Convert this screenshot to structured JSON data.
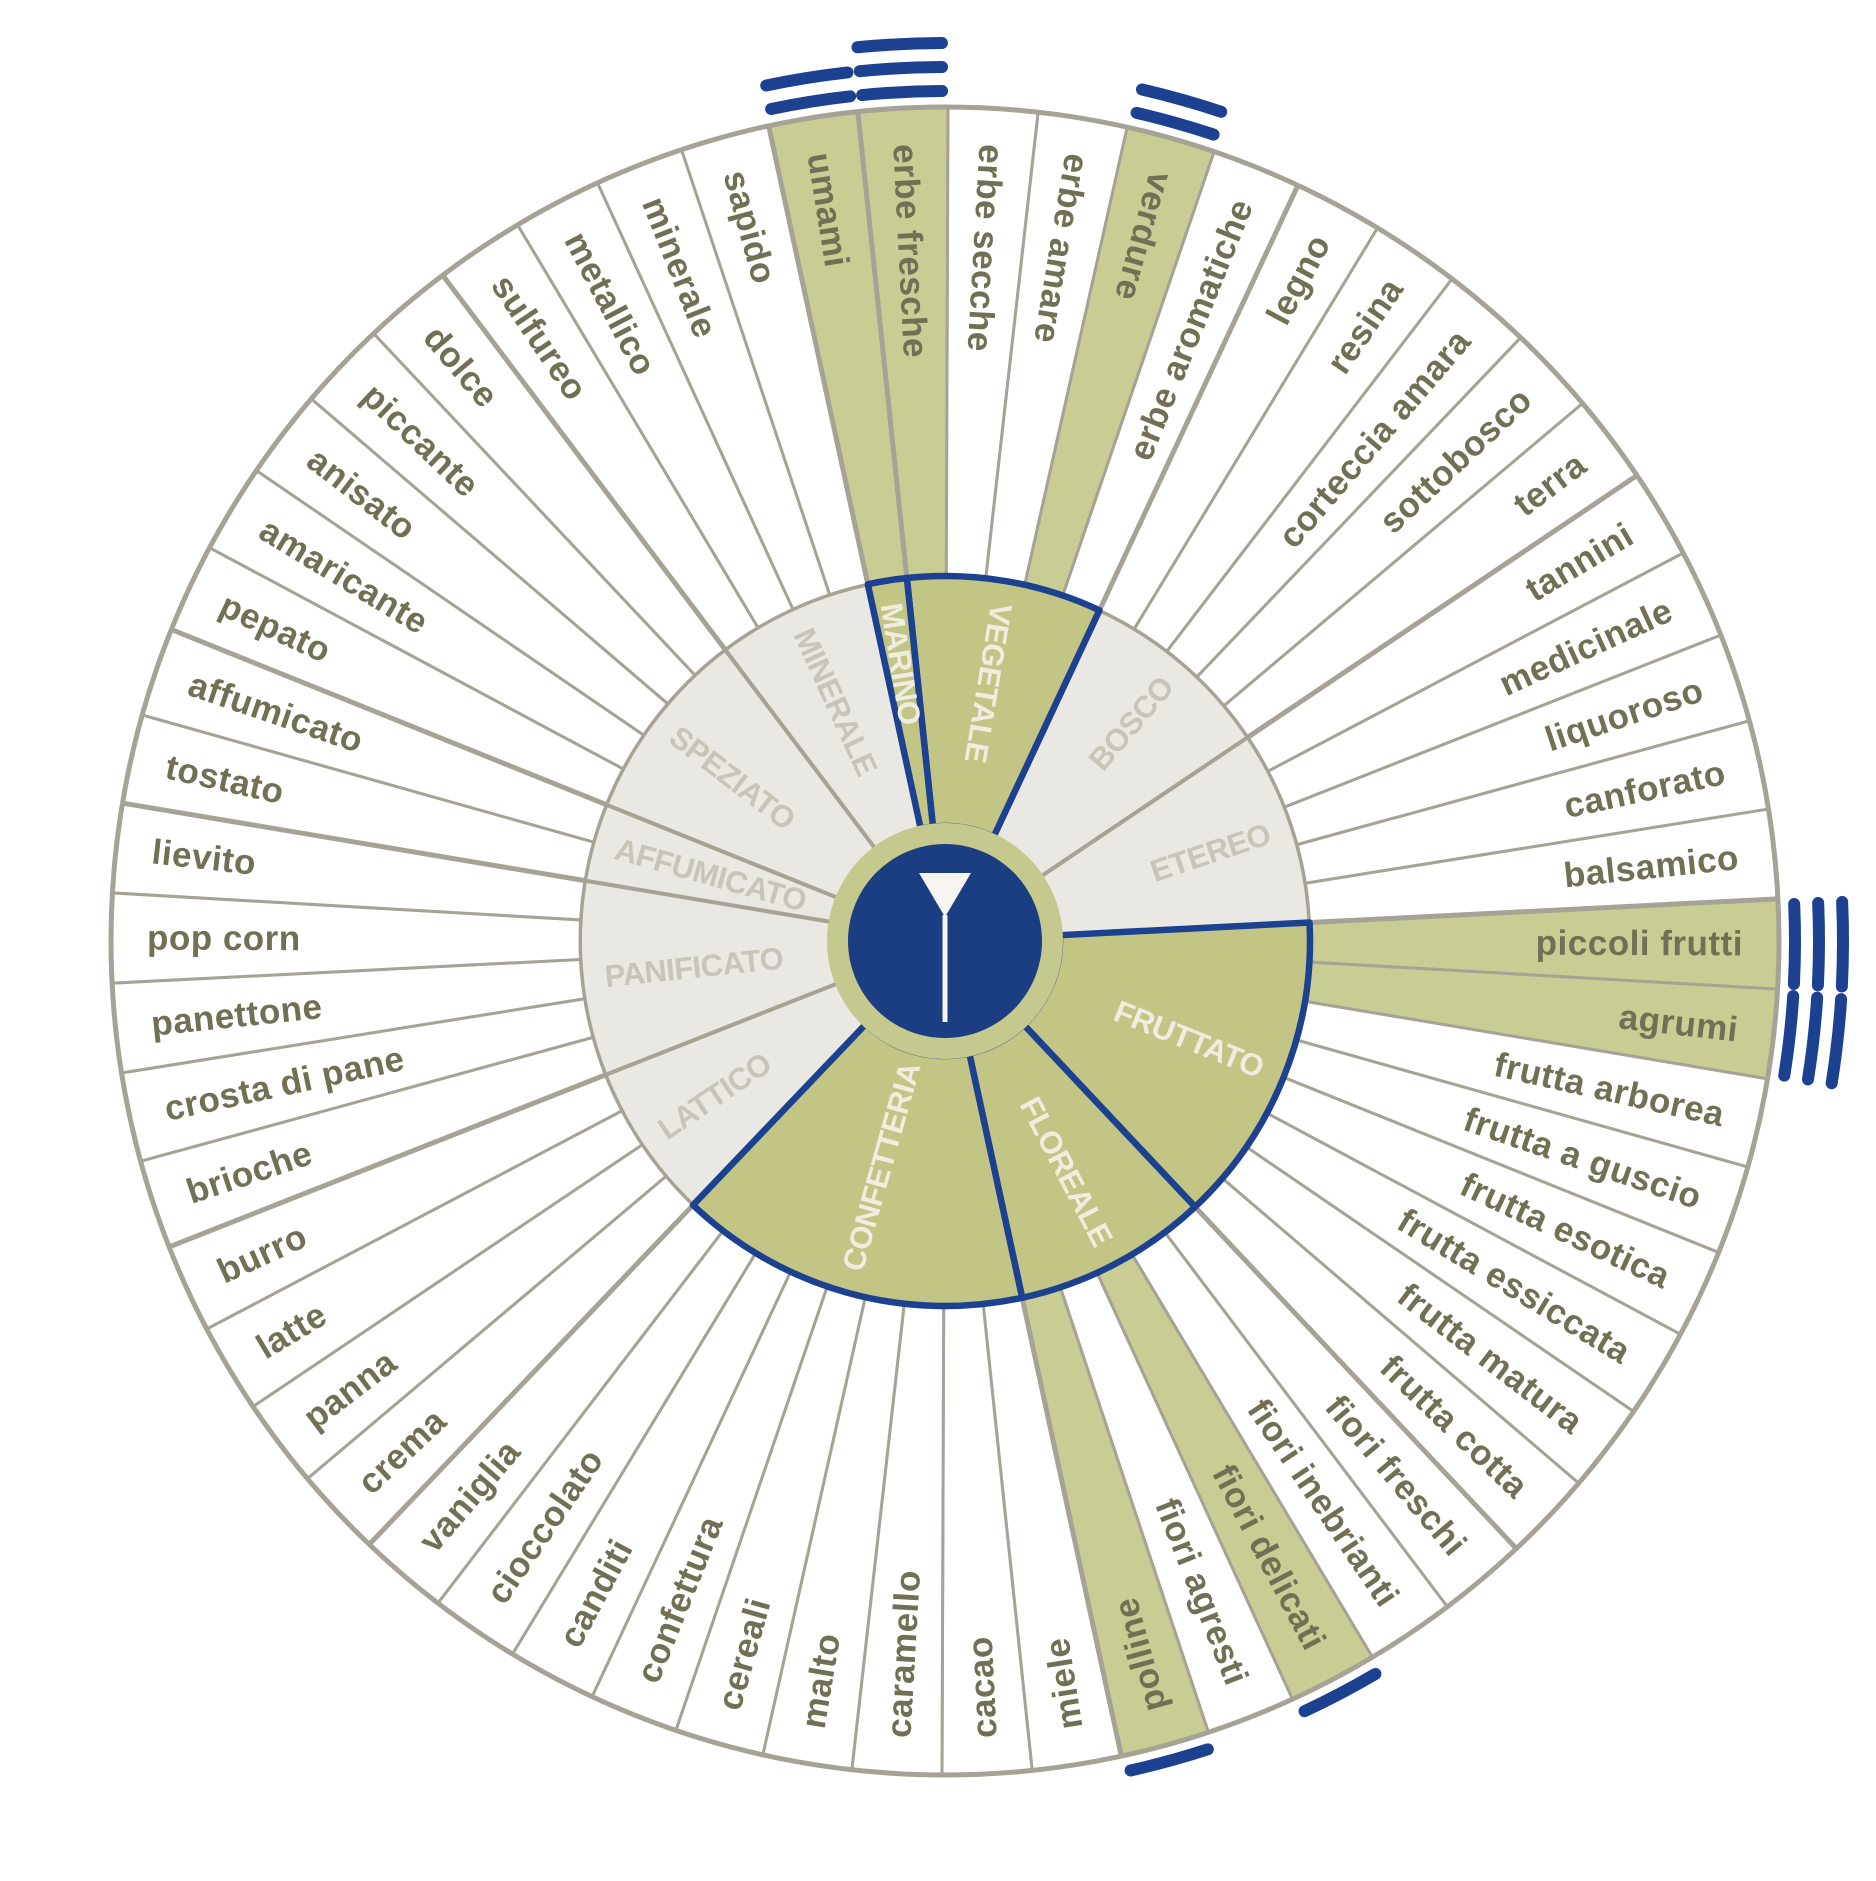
{
  "colors": {
    "blue": "#1c4190",
    "navy_center": "#1b3e82",
    "green_wedge": "#c9cc93",
    "green_inner": "#c2c584",
    "green_ring": "#c6c98d",
    "gray_fill": "#e9e8e2",
    "line_gray": "#a6a396",
    "text_outer": "#716f54",
    "text_inner_gray": "#c7c5b9",
    "text_inner_green": "#f0ecdf",
    "white": "#ffffff",
    "glass_white": "#f6f4ef"
  },
  "center_icon": "wine-glass-icon",
  "chart_data": {
    "type": "sunburst",
    "title": "",
    "rings": 2,
    "start_angle": -96,
    "legend_position": "none",
    "intensity_marks_note": "blue arc marks outside rim = intensity count per highlighted aroma",
    "categories": [
      {
        "label": "VEGETALE",
        "highlighted": true,
        "items": [
          {
            "label": "erbe fresche",
            "highlighted": true,
            "intensity": 3
          },
          {
            "label": "erbe secche",
            "highlighted": false
          },
          {
            "label": "erbe amare",
            "highlighted": false
          },
          {
            "label": "verdure",
            "highlighted": true,
            "intensity": 2
          },
          {
            "label": "erbe aromatiche",
            "highlighted": false
          }
        ]
      },
      {
        "label": "BOSCO",
        "highlighted": false,
        "items": [
          {
            "label": "legno",
            "highlighted": false
          },
          {
            "label": "resina",
            "highlighted": false
          },
          {
            "label": "corteccia amara",
            "highlighted": false
          },
          {
            "label": "sottobosco",
            "highlighted": false
          },
          {
            "label": "terra",
            "highlighted": false
          }
        ]
      },
      {
        "label": "ETEREO",
        "highlighted": false,
        "items": [
          {
            "label": "tannini",
            "highlighted": false
          },
          {
            "label": "medicinale",
            "highlighted": false
          },
          {
            "label": "liquoroso",
            "highlighted": false
          },
          {
            "label": "canforato",
            "highlighted": false
          },
          {
            "label": "balsamico",
            "highlighted": false
          }
        ]
      },
      {
        "label": "FRUTTATO",
        "highlighted": true,
        "items": [
          {
            "label": "piccoli frutti",
            "highlighted": true,
            "intensity": 3
          },
          {
            "label": "agrumi",
            "highlighted": true,
            "intensity": 3
          },
          {
            "label": "frutta arborea",
            "highlighted": false
          },
          {
            "label": "frutta a guscio",
            "highlighted": false
          },
          {
            "label": "frutta esotica",
            "highlighted": false
          },
          {
            "label": "frutta essiccata",
            "highlighted": false
          },
          {
            "label": "frutta matura",
            "highlighted": false
          },
          {
            "label": "frutta cotta",
            "highlighted": false
          }
        ]
      },
      {
        "label": "FLOREALE",
        "highlighted": true,
        "items": [
          {
            "label": "fiori freschi",
            "highlighted": false
          },
          {
            "label": "fiori inebrianti",
            "highlighted": false
          },
          {
            "label": "fiori delicati",
            "highlighted": true,
            "intensity": 1
          },
          {
            "label": "fiori agresti",
            "highlighted": false
          },
          {
            "label": "polline",
            "highlighted": true,
            "intensity": 1
          }
        ]
      },
      {
        "label": "CONFETTERIA",
        "highlighted": true,
        "items": [
          {
            "label": "miele",
            "highlighted": false
          },
          {
            "label": "cacao",
            "highlighted": false
          },
          {
            "label": "caramello",
            "highlighted": false
          },
          {
            "label": "malto",
            "highlighted": false
          },
          {
            "label": "cereali",
            "highlighted": false
          },
          {
            "label": "confettura",
            "highlighted": false
          },
          {
            "label": "canditi",
            "highlighted": false
          },
          {
            "label": "cioccolato",
            "highlighted": false
          },
          {
            "label": "vaniglia",
            "highlighted": false
          }
        ]
      },
      {
        "label": "LATTICO",
        "highlighted": false,
        "items": [
          {
            "label": "crema",
            "highlighted": false
          },
          {
            "label": "panna",
            "highlighted": false
          },
          {
            "label": "latte",
            "highlighted": false
          },
          {
            "label": "burro",
            "highlighted": false
          }
        ]
      },
      {
        "label": "PANIFICATO",
        "highlighted": false,
        "items": [
          {
            "label": "brioche",
            "highlighted": false
          },
          {
            "label": "crosta di pane",
            "highlighted": false
          },
          {
            "label": "panettone",
            "highlighted": false
          },
          {
            "label": "pop corn",
            "highlighted": false
          },
          {
            "label": "lievito",
            "highlighted": false
          }
        ]
      },
      {
        "label": "AFFUMICATO",
        "highlighted": false,
        "items": [
          {
            "label": "tostato",
            "highlighted": false
          },
          {
            "label": "affumicato",
            "highlighted": false
          }
        ]
      },
      {
        "label": "SPEZIATO",
        "highlighted": false,
        "items": [
          {
            "label": "pepato",
            "highlighted": false
          },
          {
            "label": "amaricante",
            "highlighted": false
          },
          {
            "label": "anisato",
            "highlighted": false
          },
          {
            "label": "piccante",
            "highlighted": false
          },
          {
            "label": "dolce",
            "highlighted": false
          }
        ]
      },
      {
        "label": "MINERALE",
        "highlighted": false,
        "items": [
          {
            "label": "sulfureo",
            "highlighted": false
          },
          {
            "label": "metallico",
            "highlighted": false
          },
          {
            "label": "minerale",
            "highlighted": false
          },
          {
            "label": "sapido",
            "highlighted": false
          }
        ]
      },
      {
        "label": "MARINO",
        "highlighted": true,
        "items": [
          {
            "label": "umami",
            "highlighted": true,
            "intensity": 2
          }
        ]
      }
    ]
  }
}
